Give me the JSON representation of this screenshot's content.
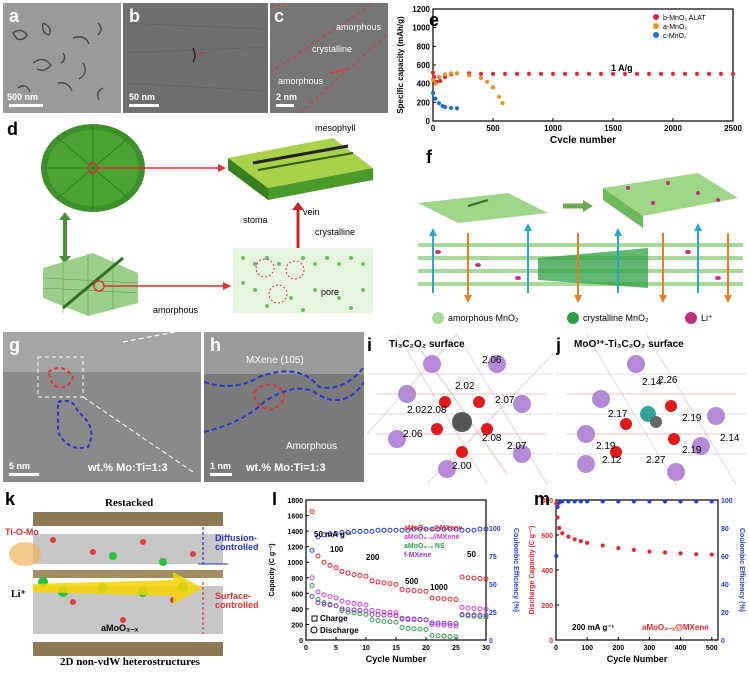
{
  "panel_labels": {
    "a": "a",
    "b": "b",
    "c": "c",
    "d": "d",
    "e": "e",
    "f": "f",
    "g": "g",
    "h": "h",
    "i": "i",
    "j": "j",
    "k": "k",
    "l": "l",
    "m": "m"
  },
  "tem": {
    "a_scale": "500 nm",
    "b_scale": "50 nm",
    "c_scale": "2 nm",
    "c_amorphous_top": "amorphous",
    "c_crystalline": "crystalline",
    "c_amorphous_bottom": "amorphous",
    "g_scale": "5 nm",
    "g_ratio": "wt.% Mo:Ti=1:3",
    "h_scale": "1 nm",
    "h_mxene": "MXene (105)",
    "h_amorphous": "Amorphous",
    "h_ratio": "wt.% Mo:Ti=1:3"
  },
  "panel_d": {
    "mesophyll": "mesophyll",
    "vein": "vein",
    "stoma": "stoma",
    "crystalline": "crystalline",
    "amorphous": "amorphous",
    "pore": "pore"
  },
  "panel_f": {
    "legend_amorphous": "amorphous MnO₂",
    "legend_crystalline": "crystalline MnO₂",
    "legend_li": "Li⁺"
  },
  "panel_i": {
    "title": "Ti₃C₂O₂ surface",
    "bonds": [
      "2.06",
      "2.02",
      "2.02",
      "2.08",
      "2.07",
      "2.06",
      "2.08",
      "2.00",
      "2.07"
    ]
  },
  "panel_j": {
    "title": "MoO³⁺-Ti₃C₂O₂ surface",
    "bonds": [
      "2.14",
      "2.26",
      "2.17",
      "2.19",
      "2.14",
      "2.19",
      "2.12",
      "2.27",
      "2.19"
    ]
  },
  "panel_k": {
    "title": "Restacked",
    "tiomo": "Ti-O-Mo",
    "diffusion": "Diffusion-controlled",
    "surface": "Surface-controlled",
    "li": "Li⁺",
    "amoo": "aMoO₃₋ₓ",
    "mxene": "MXene",
    "bottom": "2D non-vdW heterostructures"
  },
  "colors": {
    "red": "#e8262d",
    "blue": "#1f3fd0",
    "orange": "#f28f1f",
    "green": "#2ea043",
    "purple": "#8a3fc9",
    "dash_red": "#d42a2a",
    "dash_blue": "#2435c8",
    "atom_purple": "#b48ad6",
    "atom_red": "#e01919"
  },
  "chart_data": [
    {
      "id": "e",
      "type": "scatter",
      "ylabel": "Specific capacity (mAh/g)",
      "xlabel": "Cycle number",
      "xlim": [
        0,
        2500
      ],
      "ylim": [
        0,
        1200
      ],
      "xticks": [
        0,
        500,
        1000,
        1500,
        2000,
        2500
      ],
      "yticks": [
        0,
        200,
        400,
        600,
        800,
        1000,
        1200
      ],
      "annotation": "1 A/g",
      "legend_position": "top-right",
      "series": [
        {
          "name": "b-MnO₂ ALAT",
          "color": "#e8262d",
          "x": [
            0,
            10,
            30,
            60,
            100,
            150,
            200,
            300,
            400,
            500,
            600,
            700,
            800,
            900,
            1000,
            1100,
            1200,
            1300,
            1400,
            1500,
            1600,
            1700,
            1800,
            1900,
            2000,
            2100,
            2200,
            2300,
            2400,
            2500
          ],
          "y": [
            520,
            470,
            420,
            430,
            470,
            500,
            510,
            510,
            505,
            505,
            505,
            505,
            505,
            505,
            505,
            505,
            505,
            505,
            505,
            505,
            505,
            505,
            505,
            505,
            505,
            505,
            505,
            505,
            505,
            505
          ]
        },
        {
          "name": "a-MnO₂",
          "color": "#f28f1f",
          "x": [
            0,
            20,
            50,
            100,
            150,
            200,
            300,
            400,
            450,
            500,
            550,
            580
          ],
          "y": [
            440,
            400,
            470,
            500,
            510,
            510,
            490,
            460,
            420,
            360,
            260,
            190
          ]
        },
        {
          "name": "c-MnO₂",
          "color": "#1f6fd0",
          "x": [
            0,
            20,
            50,
            80,
            100,
            150,
            200
          ],
          "y": [
            300,
            240,
            190,
            160,
            150,
            140,
            135
          ]
        }
      ]
    },
    {
      "id": "l",
      "type": "scatter",
      "ylabel": "Capacity (C g⁻¹)",
      "y2label": "Coulombic Efficiency (%)",
      "xlabel": "Cycle Number",
      "xlim": [
        0,
        30
      ],
      "ylim": [
        0,
        1800
      ],
      "y2lim": [
        0,
        125
      ],
      "xticks": [
        0,
        5,
        10,
        15,
        20,
        25,
        30
      ],
      "yticks": [
        0,
        200,
        400,
        600,
        800,
        1000,
        1200,
        1400,
        1600,
        1800
      ],
      "y2ticks": [
        0,
        25,
        50,
        75,
        100
      ],
      "rate_labels": [
        "50 mA g⁻¹",
        "100",
        "200",
        "500",
        "1000",
        "50"
      ],
      "markers_legend": [
        "Charge",
        "Discharge"
      ],
      "series": [
        {
          "name": "aMoO₃₋ₓ@MXene",
          "color": "#e8262d",
          "x": [
            1,
            2,
            3,
            4,
            5,
            6,
            7,
            8,
            9,
            10,
            11,
            12,
            13,
            14,
            15,
            16,
            17,
            18,
            19,
            20,
            21,
            22,
            23,
            24,
            25,
            26,
            27,
            28,
            29,
            30
          ],
          "y": [
            1650,
            1080,
            1000,
            960,
            930,
            880,
            860,
            840,
            830,
            820,
            760,
            745,
            735,
            725,
            715,
            650,
            640,
            635,
            630,
            625,
            540,
            535,
            530,
            525,
            520,
            810,
            800,
            795,
            790,
            785
          ]
        },
        {
          "name": "aMoO₃₋ₓ//MXene",
          "color": "#c83fd2",
          "x": [
            1,
            2,
            3,
            4,
            5,
            6,
            7,
            8,
            9,
            10,
            11,
            12,
            13,
            14,
            15,
            16,
            17,
            18,
            19,
            20,
            21,
            22,
            23,
            24,
            25,
            26,
            27,
            28,
            29,
            30
          ],
          "y": [
            800,
            620,
            580,
            560,
            540,
            500,
            480,
            470,
            460,
            450,
            380,
            370,
            360,
            355,
            350,
            280,
            275,
            270,
            265,
            260,
            200,
            195,
            190,
            185,
            180,
            420,
            410,
            405,
            400,
            395
          ]
        },
        {
          "name": "aMoO₃₋ₓ NS",
          "color": "#2ea043",
          "x": [
            1,
            2,
            3,
            4,
            5,
            6,
            7,
            8,
            9,
            10,
            11,
            12,
            13,
            14,
            15,
            16,
            17,
            18,
            19,
            20,
            21,
            22,
            23,
            24,
            25,
            26,
            27,
            28,
            29,
            30
          ],
          "y": [
            700,
            520,
            480,
            460,
            440,
            380,
            360,
            350,
            340,
            330,
            260,
            250,
            240,
            235,
            230,
            160,
            150,
            145,
            140,
            135,
            60,
            55,
            50,
            45,
            40,
            320,
            310,
            305,
            300,
            295
          ]
        },
        {
          "name": "f-MXene",
          "color": "#8a3fc9",
          "x": [
            1,
            2,
            3,
            4,
            5,
            6,
            7,
            8,
            9,
            10,
            11,
            12,
            13,
            14,
            15,
            16,
            17,
            18,
            19,
            20,
            21,
            22,
            23,
            24,
            25,
            26,
            27,
            28,
            29,
            30
          ],
          "y": [
            560,
            480,
            460,
            450,
            440,
            400,
            390,
            385,
            380,
            375,
            330,
            325,
            320,
            318,
            315,
            270,
            265,
            262,
            260,
            258,
            220,
            218,
            216,
            214,
            212,
            330,
            325,
            322,
            320,
            318
          ]
        },
        {
          "name": "Coulombic Efficiency",
          "color": "#1f3fd0",
          "x": [
            1,
            2,
            3,
            4,
            5,
            6,
            7,
            8,
            9,
            10,
            11,
            12,
            13,
            14,
            15,
            16,
            17,
            18,
            19,
            20,
            21,
            22,
            23,
            24,
            25,
            26,
            27,
            28,
            29,
            30
          ],
          "y": [
            80,
            92,
            94,
            95,
            95,
            96,
            96,
            97,
            97,
            97,
            97,
            98,
            98,
            98,
            98,
            98,
            98,
            99,
            99,
            99,
            99,
            99,
            99,
            99,
            99,
            98,
            98,
            98,
            99,
            99
          ]
        }
      ]
    },
    {
      "id": "m",
      "type": "scatter",
      "ylabel": "Discharge Capacity (C g⁻¹)",
      "y2label": "Coulombic Efficiency (%)",
      "xlabel": "Cycle Number",
      "xlim": [
        0,
        520
      ],
      "ylim": [
        0,
        800
      ],
      "y2lim": [
        0,
        100
      ],
      "xticks": [
        0,
        100,
        200,
        300,
        400,
        500
      ],
      "yticks": [
        0,
        200,
        400,
        600,
        800
      ],
      "y2ticks": [
        0,
        20,
        40,
        60,
        80,
        100
      ],
      "annotation_rate": "200 mA g⁻¹",
      "annotation_material": "aMoO₃₋ₓ@MXene",
      "series": [
        {
          "name": "Discharge Capacity",
          "color": "#e8262d",
          "x": [
            1,
            5,
            10,
            20,
            40,
            60,
            80,
            100,
            150,
            200,
            250,
            300,
            350,
            400,
            450,
            500
          ],
          "y": [
            780,
            700,
            640,
            610,
            590,
            575,
            565,
            555,
            540,
            525,
            515,
            505,
            500,
            495,
            490,
            488
          ]
        },
        {
          "name": "Coulombic Efficiency",
          "color": "#1f3fd0",
          "x": [
            1,
            5,
            10,
            20,
            40,
            60,
            80,
            100,
            150,
            200,
            250,
            300,
            350,
            400,
            450,
            500
          ],
          "y": [
            60,
            95,
            98,
            99,
            99,
            99,
            99,
            99,
            99,
            99,
            99,
            99,
            99,
            99,
            99,
            99
          ]
        }
      ]
    }
  ]
}
